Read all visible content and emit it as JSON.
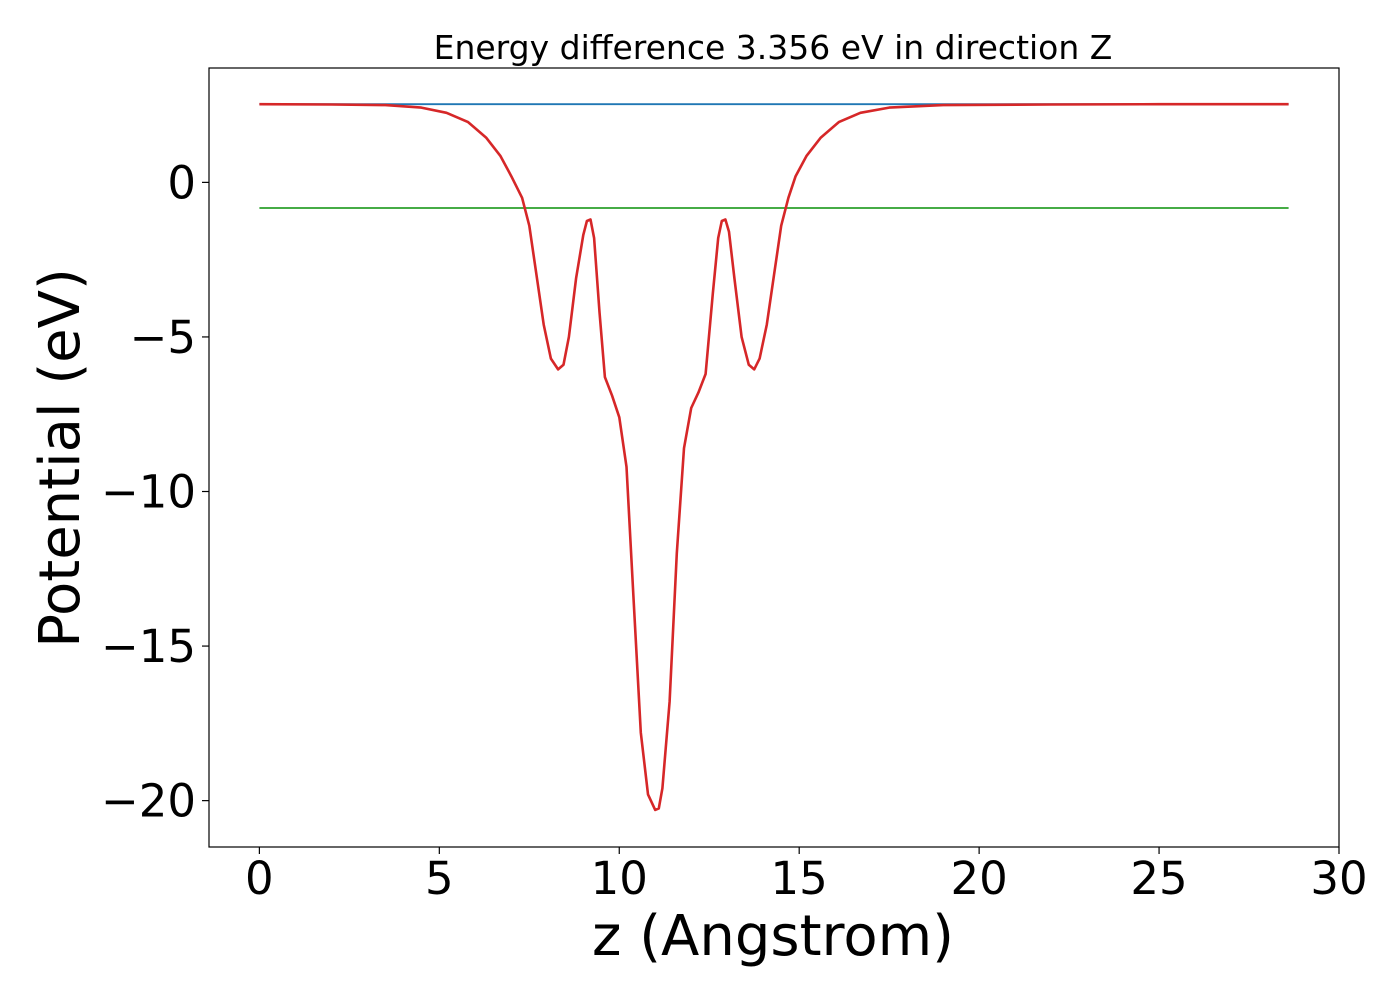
{
  "chart_data": {
    "type": "line",
    "title": "Energy difference 3.356 eV in direction Z",
    "xlabel": "z (Angstrom)",
    "ylabel": "Potential (eV)",
    "xlim": [
      -1.4,
      30
    ],
    "ylim": [
      -21.5,
      3.7
    ],
    "xticks": [
      0,
      5,
      10,
      15,
      20,
      25,
      30
    ],
    "yticks": [
      0,
      -5,
      -10,
      -15,
      -20
    ],
    "grid": false,
    "legend": "none",
    "colors": {
      "vacuum_level": "#1f77b4",
      "fermi_level": "#2ca02c",
      "potential": "#d62728"
    },
    "series": [
      {
        "key": "vacuum_level",
        "x": [
          0,
          28.6
        ],
        "y": [
          2.53,
          2.53
        ]
      },
      {
        "key": "fermi_level",
        "x": [
          0,
          28.6
        ],
        "y": [
          -0.83,
          -0.83
        ]
      },
      {
        "key": "potential",
        "x": [
          0,
          2,
          3.5,
          4.5,
          5.2,
          5.8,
          6.3,
          6.7,
          7.0,
          7.3,
          7.5,
          7.7,
          7.9,
          8.1,
          8.3,
          8.45,
          8.6,
          8.8,
          9.0,
          9.1,
          9.2,
          9.3,
          9.45,
          9.6,
          9.8,
          10.0,
          10.2,
          10.4,
          10.6,
          10.8,
          11.0,
          11.1,
          11.2,
          11.4,
          11.6,
          11.8,
          12.0,
          12.2,
          12.4,
          12.6,
          12.75,
          12.85,
          12.95,
          13.05,
          13.2,
          13.4,
          13.6,
          13.75,
          13.9,
          14.1,
          14.3,
          14.5,
          14.7,
          14.9,
          15.2,
          15.6,
          16.1,
          16.7,
          17.5,
          19,
          22,
          25,
          28.6
        ],
        "y": [
          2.53,
          2.52,
          2.5,
          2.42,
          2.25,
          1.95,
          1.45,
          0.85,
          0.2,
          -0.5,
          -1.4,
          -3.0,
          -4.6,
          -5.7,
          -6.05,
          -5.9,
          -5.0,
          -3.1,
          -1.7,
          -1.25,
          -1.2,
          -1.8,
          -4.2,
          -6.3,
          -6.9,
          -7.6,
          -9.2,
          -13.5,
          -17.8,
          -19.8,
          -20.3,
          -20.25,
          -19.6,
          -16.8,
          -12.0,
          -8.6,
          -7.3,
          -6.8,
          -6.2,
          -3.6,
          -1.8,
          -1.25,
          -1.2,
          -1.6,
          -3.1,
          -5.0,
          -5.9,
          -6.05,
          -5.7,
          -4.6,
          -3.0,
          -1.4,
          -0.5,
          0.2,
          0.85,
          1.45,
          1.95,
          2.25,
          2.42,
          2.5,
          2.52,
          2.53,
          2.53
        ]
      }
    ]
  }
}
